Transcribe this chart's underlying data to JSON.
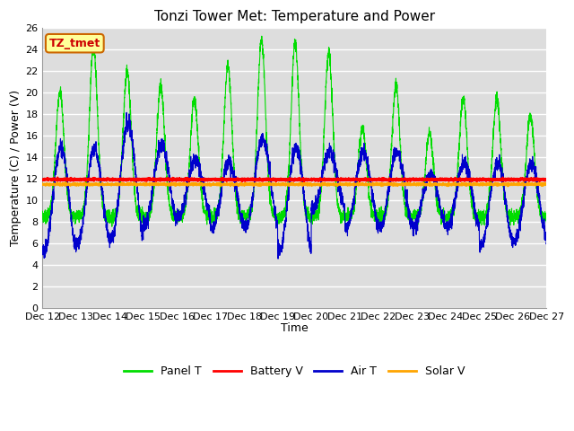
{
  "title": "Tonzi Tower Met: Temperature and Power",
  "xlabel": "Time",
  "ylabel": "Temperature (C) / Power (V)",
  "ylim": [
    0,
    26
  ],
  "yticks": [
    0,
    2,
    4,
    6,
    8,
    10,
    12,
    14,
    16,
    18,
    20,
    22,
    24,
    26
  ],
  "xtick_labels": [
    "Dec 12",
    "Dec 13",
    "Dec 14",
    "Dec 15",
    "Dec 16",
    "Dec 17",
    "Dec 18",
    "Dec 19",
    "Dec 20",
    "Dec 21",
    "Dec 22",
    "Dec 23",
    "Dec 24",
    "Dec 25",
    "Dec 26",
    "Dec 27"
  ],
  "fig_bg_color": "#ffffff",
  "plot_bg_color": "#dddddd",
  "grid_color": "#ffffff",
  "annotation_text": "TZ_tmet",
  "annotation_fg": "#cc0000",
  "annotation_bg": "#ffff99",
  "annotation_border": "#cc6600",
  "legend_labels": [
    "Panel T",
    "Battery V",
    "Air T",
    "Solar V"
  ],
  "line_colors": [
    "#00dd00",
    "#ff0000",
    "#0000cc",
    "#ffa500"
  ],
  "battery_v_mean": 11.95,
  "solar_v_mean": 11.5,
  "title_fontsize": 11,
  "tick_fontsize": 8,
  "ylabel_fontsize": 9,
  "xlabel_fontsize": 9
}
